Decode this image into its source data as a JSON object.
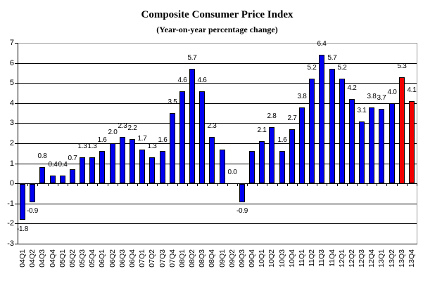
{
  "chart": {
    "title": "Composite Consumer Price Index",
    "subtitle": "(Year-on-year percentage change)"
  },
  "chart_data": {
    "type": "bar",
    "title": "Composite Consumer Price Index",
    "subtitle": "(Year-on-year percentage change)",
    "xlabel": "",
    "ylabel": "",
    "ylim": [
      -3,
      7
    ],
    "ytick_step": 1,
    "yticks": [
      7,
      6,
      5,
      4,
      3,
      2,
      1,
      0,
      -1,
      -2,
      -3
    ],
    "grid": true,
    "legend": "none",
    "colors": {
      "blue": "#0000F0",
      "red": "#F00000",
      "bar_border": "#000000",
      "gridline": "#000000",
      "plot_border": "#999999",
      "background": "#FFFFFF",
      "text": "#000000"
    },
    "points": [
      {
        "category": "04Q1",
        "value": -1.8,
        "label": "-1.8",
        "color": "blue"
      },
      {
        "category": "04Q2",
        "value": -0.9,
        "label": "-0.9",
        "color": "blue"
      },
      {
        "category": "04Q3",
        "value": 0.8,
        "label": "0.8",
        "color": "blue"
      },
      {
        "category": "04Q4",
        "value": 0.4,
        "label": "0.4",
        "color": "blue"
      },
      {
        "category": "05Q1",
        "value": 0.4,
        "label": "0.4",
        "color": "blue"
      },
      {
        "category": "05Q2",
        "value": 0.7,
        "label": "0.7",
        "color": "blue"
      },
      {
        "category": "05Q3",
        "value": 1.3,
        "label": "1.3",
        "color": "blue"
      },
      {
        "category": "05Q4",
        "value": 1.3,
        "label": "1.3",
        "color": "blue"
      },
      {
        "category": "06Q1",
        "value": 1.6,
        "label": "1.6",
        "color": "blue"
      },
      {
        "category": "06Q2",
        "value": 2.0,
        "label": "2.0",
        "color": "blue"
      },
      {
        "category": "06Q3",
        "value": 2.3,
        "label": "2.3",
        "color": "blue"
      },
      {
        "category": "06Q4",
        "value": 2.2,
        "label": "2.2",
        "color": "blue"
      },
      {
        "category": "07Q1",
        "value": 1.7,
        "label": "1.7",
        "color": "blue"
      },
      {
        "category": "07Q2",
        "value": 1.3,
        "label": "1.3",
        "color": "blue"
      },
      {
        "category": "07Q3",
        "value": 1.6,
        "label": "1.6",
        "color": "blue"
      },
      {
        "category": "07Q4",
        "value": 3.5,
        "label": "3.5",
        "color": "blue"
      },
      {
        "category": "08Q1",
        "value": 4.6,
        "label": "4.6",
        "color": "blue"
      },
      {
        "category": "08Q2",
        "value": 5.7,
        "label": "5.7",
        "color": "blue"
      },
      {
        "category": "08Q3",
        "value": 4.6,
        "label": "4.6",
        "color": "blue"
      },
      {
        "category": "08Q4",
        "value": 2.3,
        "label": "2.3",
        "color": "blue"
      },
      {
        "category": "09Q1",
        "value": 1.7,
        "label": "",
        "color": "blue"
      },
      {
        "category": "09Q2",
        "value": 0.0,
        "label": "0.0",
        "color": "blue"
      },
      {
        "category": "09Q3",
        "value": -0.9,
        "label": "-0.9",
        "color": "blue"
      },
      {
        "category": "09Q4",
        "value": 1.6,
        "label": "",
        "color": "blue"
      },
      {
        "category": "10Q1",
        "value": 2.1,
        "label": "2.1",
        "color": "blue"
      },
      {
        "category": "10Q2",
        "value": 2.8,
        "label": "2.8",
        "color": "blue"
      },
      {
        "category": "10Q3",
        "value": 1.6,
        "label": "1.6",
        "color": "blue"
      },
      {
        "category": "10Q4",
        "value": 2.7,
        "label": "2.7",
        "color": "blue"
      },
      {
        "category": "11Q1",
        "value": 3.8,
        "label": "3.8",
        "color": "blue"
      },
      {
        "category": "11Q2",
        "value": 5.2,
        "label": "5.2",
        "color": "blue"
      },
      {
        "category": "11Q3",
        "value": 6.4,
        "label": "6.4",
        "color": "blue"
      },
      {
        "category": "11Q4",
        "value": 5.7,
        "label": "5.7",
        "color": "blue"
      },
      {
        "category": "12Q1",
        "value": 5.2,
        "label": "5.2",
        "color": "blue"
      },
      {
        "category": "12Q2",
        "value": 4.2,
        "label": "4.2",
        "color": "blue"
      },
      {
        "category": "12Q3",
        "value": 3.1,
        "label": "3.1",
        "color": "blue"
      },
      {
        "category": "12Q4",
        "value": 3.8,
        "label": "3.8",
        "color": "blue"
      },
      {
        "category": "13Q1",
        "value": 3.7,
        "label": "3.7",
        "color": "blue"
      },
      {
        "category": "13Q2",
        "value": 4.0,
        "label": "4.0",
        "color": "blue"
      },
      {
        "category": "13Q3",
        "value": 5.3,
        "label": "5.3",
        "color": "red"
      },
      {
        "category": "13Q4",
        "value": 4.1,
        "label": "4.1",
        "color": "red"
      }
    ]
  }
}
